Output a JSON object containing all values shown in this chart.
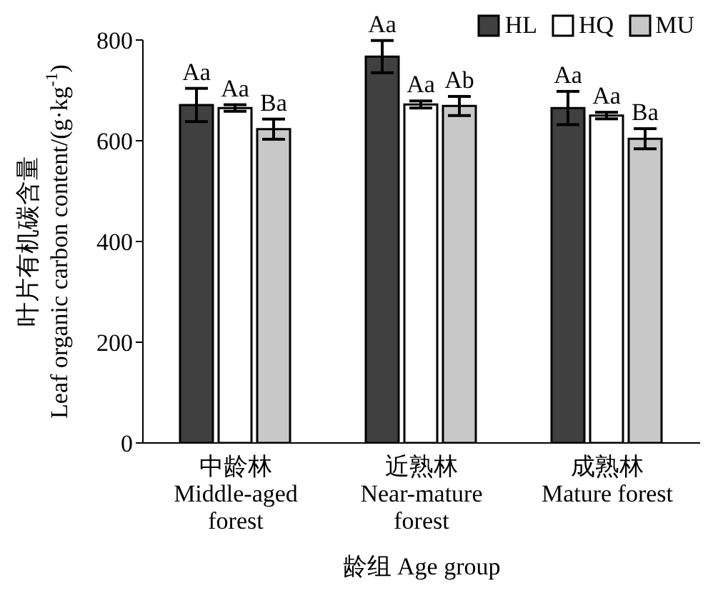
{
  "chart_data": {
    "type": "bar",
    "xlabel": "龄组 Age group",
    "ylabel": "叶片有机碳含量\nLeaf organic carbon content/(g·kg$^{-1}$)",
    "categories": [
      "中龄林\nMiddle-aged\nforest",
      "近熟林\nNear-mature\nforest",
      "成熟林\nMature forest"
    ],
    "series": [
      {
        "name": "HL",
        "color": "#404040",
        "values": [
          671,
          767,
          665
        ],
        "errors": [
          33,
          32,
          33
        ],
        "value_labels": [
          "Aa",
          "Aa",
          "Aa"
        ]
      },
      {
        "name": "HQ",
        "color": "#ffffff",
        "values": [
          665,
          672,
          650
        ],
        "errors": [
          6.5,
          7,
          6.5
        ],
        "value_labels": [
          "Aa",
          "Aa",
          "Aa"
        ]
      },
      {
        "name": "MU",
        "color": "#c8c8c8",
        "values": [
          623,
          669,
          604
        ],
        "errors": [
          20,
          19,
          20
        ],
        "value_labels": [
          "Ba",
          "Ab",
          "Ba"
        ]
      }
    ],
    "ylim": [
      0,
      800
    ],
    "yticks": [
      0,
      200,
      400,
      600,
      800
    ],
    "grid": false,
    "legend": "top right"
  }
}
